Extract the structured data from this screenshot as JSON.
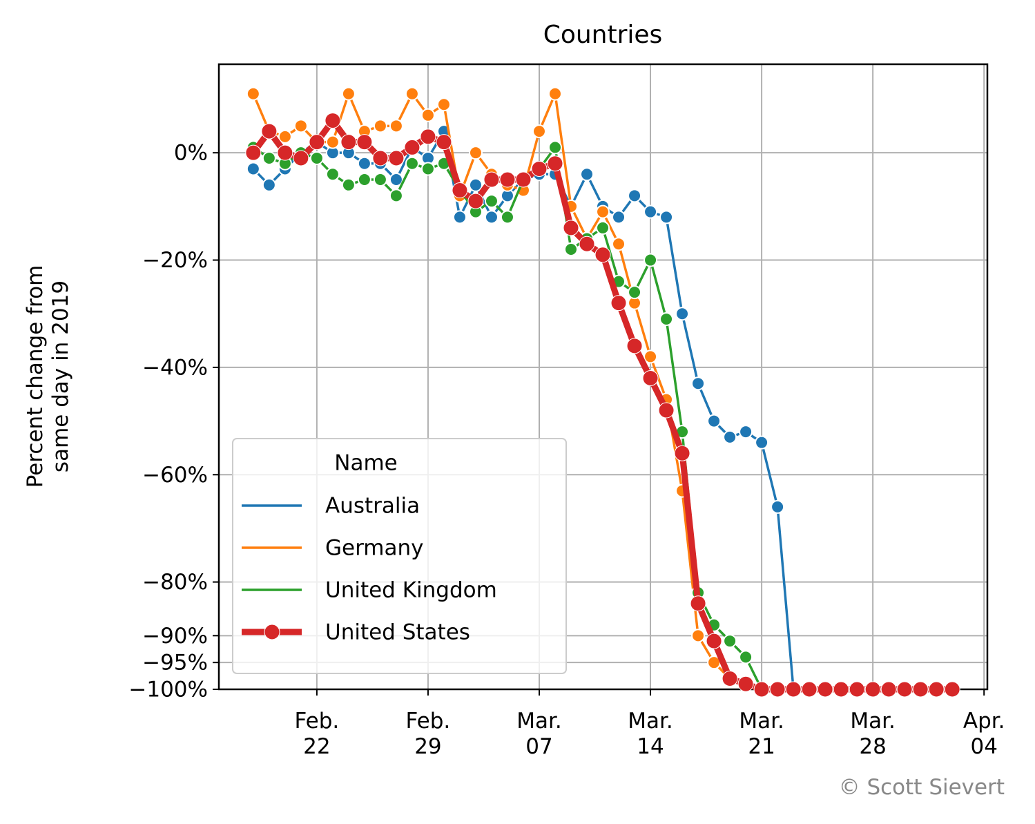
{
  "chart_data": {
    "type": "line",
    "title": "Countries",
    "ylabel": "Percent change from\nsame day in 2019",
    "annotation": "© Scott Sievert",
    "legend_title": "Name",
    "legend": "lower left",
    "grid": true,
    "x": [
      "02-18",
      "02-19",
      "02-20",
      "02-21",
      "02-22",
      "02-23",
      "02-24",
      "02-25",
      "02-26",
      "02-27",
      "02-28",
      "02-29",
      "03-01",
      "03-02",
      "03-03",
      "03-04",
      "03-05",
      "03-06",
      "03-07",
      "03-08",
      "03-09",
      "03-10",
      "03-11",
      "03-12",
      "03-13",
      "03-14",
      "03-15",
      "03-16",
      "03-17",
      "03-18",
      "03-19",
      "03-20",
      "03-21",
      "03-22",
      "03-23",
      "03-24",
      "03-25",
      "03-26",
      "03-27",
      "03-28",
      "03-29",
      "03-30",
      "03-31",
      "04-01",
      "04-02"
    ],
    "xlim": [
      "02-15T20:00",
      "04-04T05:00"
    ],
    "xticks": [
      {
        "value": "02-22",
        "label": "Feb.\n22"
      },
      {
        "value": "02-29",
        "label": "Feb.\n29"
      },
      {
        "value": "03-07",
        "label": "Mar.\n07"
      },
      {
        "value": "03-14",
        "label": "Mar.\n14"
      },
      {
        "value": "03-21",
        "label": "Mar.\n21"
      },
      {
        "value": "03-28",
        "label": "Mar.\n28"
      },
      {
        "value": "04-04",
        "label": "Apr.\n04"
      }
    ],
    "ylim": [
      -100,
      16.5
    ],
    "yticks": [
      {
        "value": 0,
        "label": "0%"
      },
      {
        "value": -20,
        "label": "−20%"
      },
      {
        "value": -40,
        "label": "−40%"
      },
      {
        "value": -60,
        "label": "−60%"
      },
      {
        "value": -80,
        "label": "−80%"
      },
      {
        "value": -90,
        "label": "−90%"
      },
      {
        "value": -95,
        "label": "−95%"
      },
      {
        "value": -100,
        "label": "−100%"
      }
    ],
    "series": [
      {
        "name": "Australia",
        "color": "#1f77b4",
        "values": [
          -3,
          -6,
          -3,
          0,
          2,
          0,
          0,
          -2,
          -2,
          -5,
          1,
          -1,
          4,
          -12,
          -6,
          -12,
          -8,
          -5,
          -4,
          -4,
          -10,
          -4,
          -10,
          -12,
          -8,
          -11,
          -12,
          -30,
          -43,
          -50,
          -53,
          -52,
          -54,
          -66,
          -100,
          -100,
          -100,
          -100,
          -100,
          -100,
          -100,
          -100,
          -100,
          -100,
          -100
        ]
      },
      {
        "name": "Germany",
        "color": "#ff7f0e",
        "values": [
          11,
          4,
          3,
          5,
          2,
          2,
          11,
          4,
          5,
          5,
          11,
          7,
          9,
          -8,
          0,
          -4,
          -6,
          -7,
          4,
          11,
          -10,
          -16,
          -11,
          -17,
          -28,
          -38,
          -46,
          -63,
          -90,
          -95,
          -98,
          -99,
          -100,
          -100,
          -100,
          -100,
          -100,
          -100,
          -100,
          -100,
          -100,
          -100,
          -100,
          -100,
          -100
        ]
      },
      {
        "name": "United Kingdom",
        "color": "#2ca02c",
        "values": [
          1,
          -1,
          -2,
          0,
          -1,
          -4,
          -6,
          -5,
          -5,
          -8,
          -2,
          -3,
          -2,
          -7,
          -11,
          -9,
          -12,
          -5,
          -3,
          1,
          -18,
          -16,
          -14,
          -24,
          -26,
          -20,
          -31,
          -52,
          -82,
          -88,
          -91,
          -94,
          -100,
          -100,
          -100,
          -100,
          -100,
          -100,
          -100,
          -100,
          -100,
          -100,
          -100,
          -100,
          -100
        ]
      },
      {
        "name": "United States",
        "color": "#d62728",
        "values": [
          0,
          4,
          0,
          -1,
          2,
          6,
          2,
          2,
          -1,
          -1,
          1,
          3,
          2,
          -7,
          -9,
          -5,
          -5,
          -5,
          -3,
          -2,
          -14,
          -17,
          -19,
          -28,
          -36,
          -42,
          -48,
          -56,
          -84,
          -91,
          -98,
          -99,
          -100,
          -100,
          -100,
          -100,
          -100,
          -100,
          -100,
          -100,
          -100,
          -100,
          -100,
          -100,
          -100
        ]
      }
    ]
  }
}
